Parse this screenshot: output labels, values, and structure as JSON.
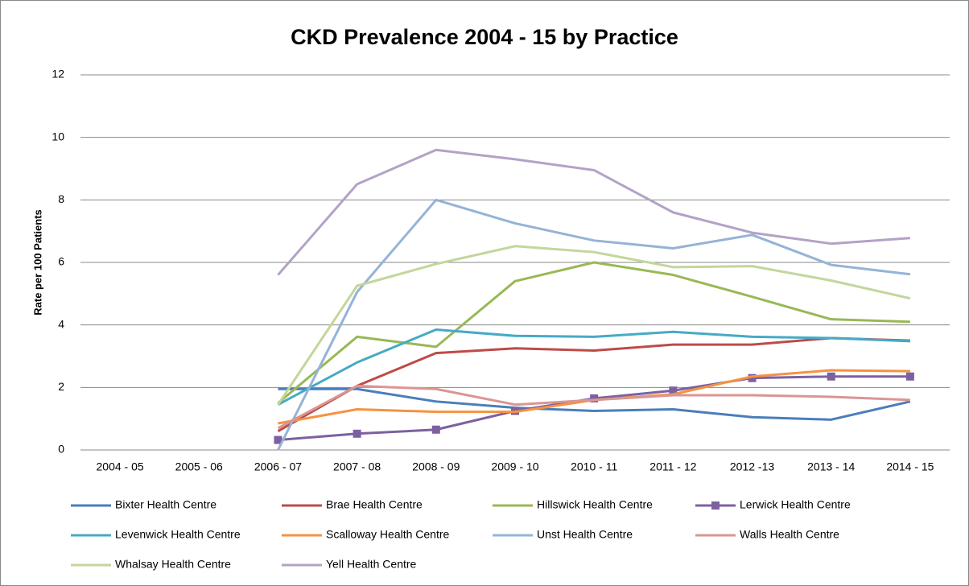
{
  "chart_data": {
    "type": "line",
    "title": "CKD Prevalence 2004 - 15 by Practice",
    "y_label": "Rate per 100 Patients",
    "categories": [
      "2004 - 05",
      "2005 - 06",
      "2006 - 07",
      "2007 - 08",
      "2008 - 09",
      "2009 - 10",
      "2010 - 11",
      "2011 - 12",
      "2012 -13",
      "2013 - 14",
      "2014 - 15"
    ],
    "ylim": [
      0,
      12
    ],
    "yticks": [
      0,
      2,
      4,
      6,
      8,
      10,
      12
    ],
    "grid": true,
    "series": [
      {
        "name": "Bixter Health Centre",
        "color": "#4A7EBB",
        "values": [
          null,
          null,
          1.95,
          1.95,
          1.55,
          1.35,
          1.25,
          1.3,
          1.05,
          0.97,
          1.55
        ]
      },
      {
        "name": "Brae Health Centre",
        "color": "#BE4B48",
        "values": [
          null,
          null,
          0.6,
          2.05,
          3.1,
          3.25,
          3.18,
          3.37,
          3.37,
          3.58,
          3.5
        ]
      },
      {
        "name": "Hillswick Health Centre",
        "color": "#98B954",
        "values": [
          null,
          null,
          1.5,
          3.62,
          3.3,
          5.4,
          6.0,
          5.6,
          4.9,
          4.18,
          4.1
        ]
      },
      {
        "name": "Lerwick Health Centre",
        "color": "#7D60A0",
        "marker": "square",
        "values": [
          null,
          null,
          0.32,
          0.52,
          0.65,
          1.25,
          1.65,
          1.9,
          2.3,
          2.35,
          2.35
        ]
      },
      {
        "name": "Levenwick Health Centre",
        "color": "#46AAC5",
        "values": [
          null,
          null,
          1.45,
          2.8,
          3.85,
          3.65,
          3.62,
          3.78,
          3.62,
          3.58,
          3.48
        ]
      },
      {
        "name": "Scalloway Health Centre",
        "color": "#F69240",
        "values": [
          null,
          null,
          0.85,
          1.3,
          1.22,
          1.22,
          1.6,
          1.78,
          2.35,
          2.55,
          2.52
        ]
      },
      {
        "name": "Unst Health Centre",
        "color": "#95B3D7",
        "values": [
          null,
          null,
          0.0,
          5.05,
          8.0,
          7.25,
          6.7,
          6.45,
          6.88,
          5.92,
          5.62
        ]
      },
      {
        "name": "Walls Health Centre",
        "color": "#D99694",
        "values": [
          null,
          null,
          0.7,
          2.05,
          1.95,
          1.45,
          1.6,
          1.75,
          1.75,
          1.7,
          1.6
        ]
      },
      {
        "name": "Whalsay Health Centre",
        "color": "#C3D69B",
        "values": [
          null,
          null,
          1.45,
          5.25,
          5.95,
          6.52,
          6.33,
          5.85,
          5.88,
          5.42,
          4.85
        ]
      },
      {
        "name": "Yell Health Centre",
        "color": "#B3A2C7",
        "values": [
          null,
          null,
          5.6,
          8.5,
          9.6,
          9.3,
          8.95,
          7.6,
          6.95,
          6.6,
          6.78
        ]
      }
    ]
  }
}
